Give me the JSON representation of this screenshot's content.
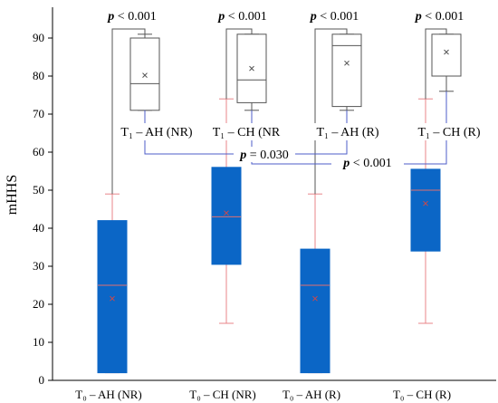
{
  "chart_data": {
    "type": "boxplot",
    "ylabel": "mHHS",
    "ylim": [
      0,
      96
    ],
    "yticks": [
      0,
      10,
      20,
      30,
      40,
      50,
      60,
      70,
      80,
      90
    ],
    "grid": false,
    "colors": {
      "t0_fill": "#0b66c6",
      "t0_whisker": "#e8868a",
      "t0_median": "#e07070",
      "t0_mean_marker": "#d04848",
      "t1_fill": "#ffffff",
      "t1_edge": "#555555",
      "connector": "#555555",
      "blue_connector": "#4c5ec8",
      "label_bg": "#ffffff"
    },
    "categories": [
      "T₀ – AH (NR)",
      "T₀ – CH (NR)",
      "T₀ – AH (R)",
      "T₀ – CH (R)"
    ],
    "series": [
      {
        "name": "T0",
        "boxes": [
          {
            "min": 2,
            "q1": 2,
            "median": 25,
            "q3": 42,
            "max": 49,
            "mean": 21.5
          },
          {
            "min": 15,
            "q1": 30.5,
            "median": 43,
            "q3": 56,
            "max": 74,
            "mean": 44
          },
          {
            "min": 2,
            "q1": 2,
            "median": 25,
            "q3": 34.5,
            "max": 49,
            "mean": 21.5
          },
          {
            "min": 15,
            "q1": 34,
            "median": 50,
            "q3": 55.5,
            "max": 74,
            "mean": 46.5
          }
        ]
      },
      {
        "name": "T1",
        "boxes": [
          {
            "min": 71,
            "q1": 71,
            "median": 78,
            "q3": 90,
            "max": 91,
            "mean": 80.2
          },
          {
            "min": 71,
            "q1": 73,
            "median": 79,
            "q3": 91,
            "max": 91,
            "mean": 82
          },
          {
            "min": 71,
            "q1": 72,
            "median": 88,
            "q3": 91,
            "max": 91,
            "mean": 83.4
          },
          {
            "min": 76,
            "q1": 80,
            "median": 80,
            "q3": 91,
            "max": 91,
            "mean": 86.3
          }
        ]
      }
    ],
    "t1_labels": [
      "T₁ – AH (NR)",
      "T₁ – CH (NR",
      "T₁ – AH (R)",
      "T₁ – CH (R)"
    ],
    "pvalue_italic": "p",
    "pvalues_top": [
      "< 0.001",
      "< 0.001",
      "< 0.001",
      "< 0.001"
    ],
    "pvalue_mid_1": "= 0.030",
    "pvalue_mid_2": "< 0.001"
  }
}
